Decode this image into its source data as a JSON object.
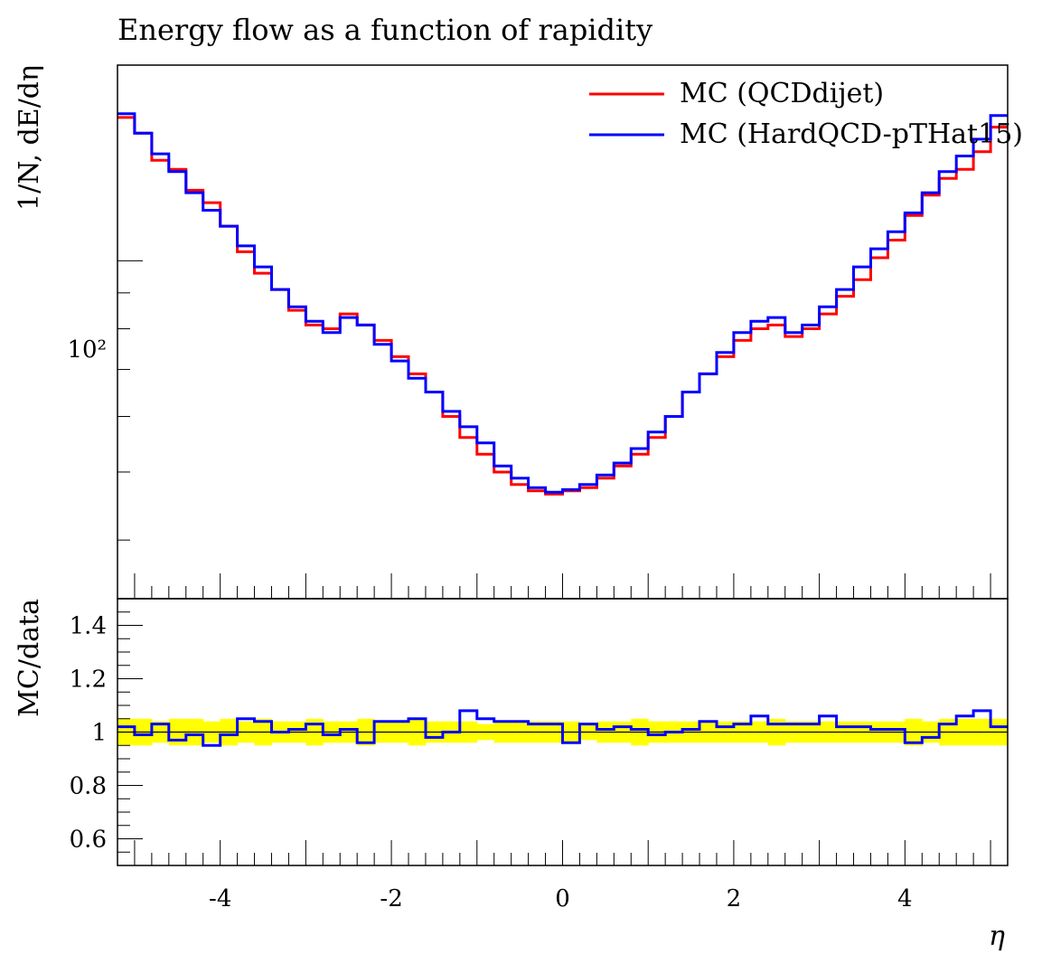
{
  "chart_data": {
    "type": "line",
    "title": "Energy flow as a function of rapidity",
    "xlabel": "η",
    "xlim": [
      -5.2,
      5.2
    ],
    "x_ticks": [
      -4,
      -2,
      0,
      2,
      4
    ],
    "x_tick_labels": [
      "-4",
      "-2",
      "0",
      "2",
      "4"
    ],
    "bin_edges": [
      -5.2,
      -5.0,
      -4.8,
      -4.6,
      -4.4,
      -4.2,
      -4.0,
      -3.8,
      -3.6,
      -3.4,
      -3.2,
      -3.0,
      -2.8,
      -2.6,
      -2.4,
      -2.2,
      -2.0,
      -1.8,
      -1.6,
      -1.4,
      -1.2,
      -1.0,
      -0.8,
      -0.6,
      -0.4,
      -0.2,
      0.0,
      0.2,
      0.4,
      0.6,
      0.8,
      1.0,
      1.2,
      1.4,
      1.6,
      1.8,
      2.0,
      2.2,
      2.4,
      2.6,
      2.8,
      3.0,
      3.2,
      3.4,
      3.6,
      3.8,
      4.0,
      4.2,
      4.4,
      4.6,
      4.8,
      5.0,
      5.2
    ],
    "main_panel": {
      "ylabel": "1/N, dE/dη",
      "yscale": "log",
      "ylim": [
        33,
        190
      ],
      "y_tick_labels": [
        "10²"
      ],
      "legend_position": "top-right",
      "series": [
        {
          "name": "MC (QCDdijet)",
          "color": "#ff0000",
          "values": [
            160,
            152,
            139,
            135,
            126,
            121,
            112,
            103,
            96,
            91,
            85,
            81,
            80,
            84,
            81,
            77,
            73,
            69,
            65,
            60,
            56,
            53,
            50,
            48,
            47,
            46.5,
            47,
            47.5,
            49,
            51,
            53,
            56,
            60,
            65,
            69,
            73,
            77,
            80,
            81,
            78,
            80,
            84,
            89,
            94,
            101,
            107,
            116,
            124,
            131,
            135,
            143,
            155
          ]
        },
        {
          "name": "MC (HardQCD-pTHat15)",
          "color": "#0000ff",
          "values": [
            162,
            152,
            142,
            134,
            125,
            118,
            112,
            105,
            98,
            91,
            86,
            82,
            79,
            83,
            81,
            76,
            72,
            68,
            65,
            61,
            58,
            55,
            51,
            49,
            47.5,
            46.8,
            47.2,
            48,
            49.5,
            51.5,
            54,
            57,
            60,
            65,
            69,
            74,
            79,
            82,
            83,
            79,
            81,
            86,
            91,
            98,
            104,
            110,
            117,
            125,
            134,
            141,
            149,
            161
          ]
        }
      ]
    },
    "ratio_panel": {
      "ylabel": "MC/data",
      "ylim": [
        0.5,
        1.5
      ],
      "y_ticks": [
        0.6,
        0.8,
        1.0,
        1.2,
        1.4
      ],
      "y_tick_labels": [
        "0.6",
        "0.8",
        "1",
        "1.2",
        "1.4"
      ],
      "band_color": "#ffff00",
      "band_lower": [
        0.95,
        0.95,
        0.96,
        0.95,
        0.95,
        0.96,
        0.95,
        0.96,
        0.95,
        0.96,
        0.96,
        0.95,
        0.96,
        0.96,
        0.95,
        0.96,
        0.96,
        0.95,
        0.96,
        0.96,
        0.96,
        0.97,
        0.96,
        0.96,
        0.96,
        0.96,
        0.96,
        0.97,
        0.96,
        0.96,
        0.95,
        0.96,
        0.96,
        0.96,
        0.96,
        0.96,
        0.96,
        0.96,
        0.95,
        0.96,
        0.96,
        0.96,
        0.96,
        0.96,
        0.96,
        0.96,
        0.95,
        0.96,
        0.95,
        0.95,
        0.95,
        0.95
      ],
      "band_upper": [
        1.05,
        1.05,
        1.04,
        1.05,
        1.05,
        1.04,
        1.05,
        1.04,
        1.05,
        1.04,
        1.04,
        1.05,
        1.04,
        1.04,
        1.05,
        1.04,
        1.04,
        1.05,
        1.04,
        1.04,
        1.04,
        1.03,
        1.04,
        1.04,
        1.04,
        1.04,
        1.04,
        1.03,
        1.04,
        1.04,
        1.05,
        1.04,
        1.04,
        1.04,
        1.04,
        1.04,
        1.04,
        1.04,
        1.05,
        1.04,
        1.04,
        1.04,
        1.04,
        1.04,
        1.04,
        1.04,
        1.05,
        1.04,
        1.05,
        1.05,
        1.05,
        1.05
      ],
      "ratio": [
        1.02,
        0.99,
        1.03,
        0.97,
        0.99,
        0.95,
        0.99,
        1.05,
        1.04,
        1.0,
        1.01,
        1.03,
        0.99,
        1.01,
        0.96,
        1.04,
        1.04,
        1.05,
        0.98,
        1.0,
        1.08,
        1.05,
        1.04,
        1.04,
        1.03,
        1.03,
        0.96,
        1.03,
        1.01,
        1.02,
        1.01,
        0.99,
        1.0,
        1.01,
        1.04,
        1.02,
        1.03,
        1.06,
        1.03,
        1.03,
        1.03,
        1.06,
        1.02,
        1.02,
        1.01,
        1.01,
        0.96,
        0.98,
        1.03,
        1.06,
        1.08,
        1.02
      ],
      "ratio_color": "#0000ff"
    }
  }
}
